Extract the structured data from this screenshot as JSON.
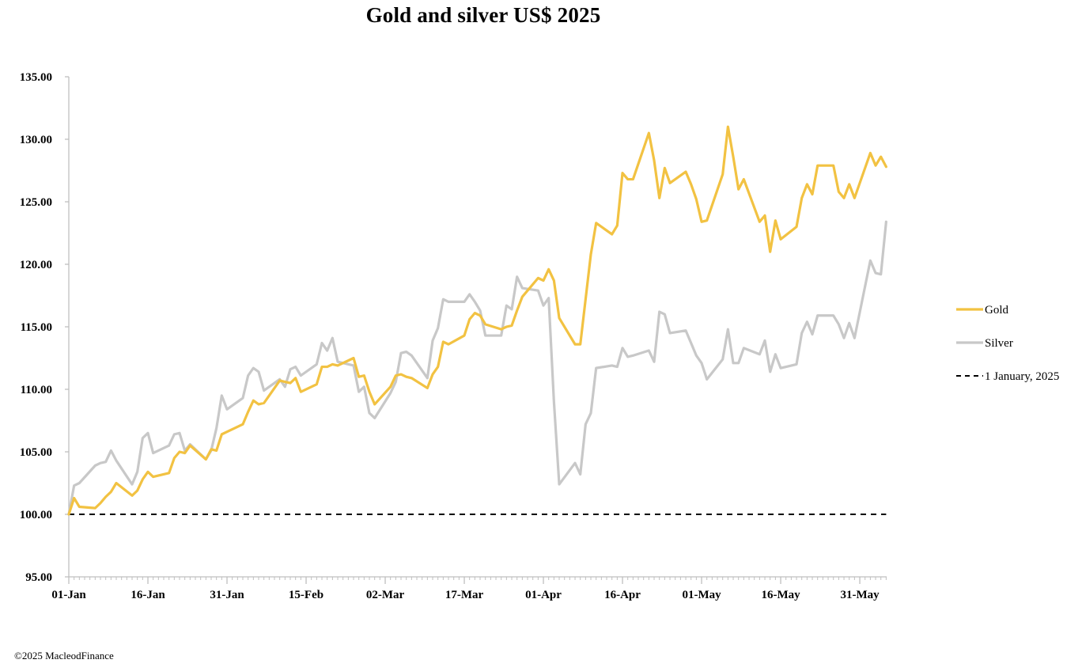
{
  "chart_data": {
    "type": "line",
    "title": "Gold and silver  US$ 2025",
    "xlabel": "",
    "ylabel": "",
    "ylim": [
      95,
      135
    ],
    "yticks": [
      "95.00",
      "100.00",
      "105.00",
      "110.00",
      "115.00",
      "120.00",
      "125.00",
      "130.00",
      "135.00"
    ],
    "xticks": [
      "01-Jan",
      "16-Jan",
      "31-Jan",
      "15-Feb",
      "02-Mar",
      "17-Mar",
      "01-Apr",
      "16-Apr",
      "01-May",
      "16-May",
      "31-May"
    ],
    "x_start_date": "2025-01-01",
    "legend_position": "right",
    "grid": false,
    "series": [
      {
        "name": "Gold",
        "color": "#f2c242",
        "style": "solid",
        "points": [
          [
            "2025-01-01",
            100.0
          ],
          [
            "2025-01-02",
            101.3
          ],
          [
            "2025-01-03",
            100.6
          ],
          [
            "2025-01-06",
            100.5
          ],
          [
            "2025-01-07",
            100.9
          ],
          [
            "2025-01-08",
            101.4
          ],
          [
            "2025-01-09",
            101.8
          ],
          [
            "2025-01-10",
            102.5
          ],
          [
            "2025-01-13",
            101.5
          ],
          [
            "2025-01-14",
            101.9
          ],
          [
            "2025-01-15",
            102.8
          ],
          [
            "2025-01-16",
            103.4
          ],
          [
            "2025-01-17",
            103.0
          ],
          [
            "2025-01-20",
            103.3
          ],
          [
            "2025-01-21",
            104.5
          ],
          [
            "2025-01-22",
            105.0
          ],
          [
            "2025-01-23",
            104.9
          ],
          [
            "2025-01-24",
            105.5
          ],
          [
            "2025-01-27",
            104.4
          ],
          [
            "2025-01-28",
            105.2
          ],
          [
            "2025-01-29",
            105.1
          ],
          [
            "2025-01-30",
            106.4
          ],
          [
            "2025-01-31",
            106.6
          ],
          [
            "2025-02-03",
            107.2
          ],
          [
            "2025-02-04",
            108.2
          ],
          [
            "2025-02-05",
            109.1
          ],
          [
            "2025-02-06",
            108.8
          ],
          [
            "2025-02-07",
            108.9
          ],
          [
            "2025-02-10",
            110.7
          ],
          [
            "2025-02-11",
            110.6
          ],
          [
            "2025-02-12",
            110.5
          ],
          [
            "2025-02-13",
            110.9
          ],
          [
            "2025-02-14",
            109.8
          ],
          [
            "2025-02-17",
            110.4
          ],
          [
            "2025-02-18",
            111.8
          ],
          [
            "2025-02-19",
            111.8
          ],
          [
            "2025-02-20",
            112.0
          ],
          [
            "2025-02-21",
            111.9
          ],
          [
            "2025-02-24",
            112.5
          ],
          [
            "2025-02-25",
            111.0
          ],
          [
            "2025-02-26",
            111.1
          ],
          [
            "2025-02-27",
            109.8
          ],
          [
            "2025-02-28",
            108.8
          ],
          [
            "2025-03-03",
            110.2
          ],
          [
            "2025-03-04",
            111.1
          ],
          [
            "2025-03-05",
            111.2
          ],
          [
            "2025-03-06",
            111.0
          ],
          [
            "2025-03-07",
            110.9
          ],
          [
            "2025-03-10",
            110.1
          ],
          [
            "2025-03-11",
            111.2
          ],
          [
            "2025-03-12",
            111.8
          ],
          [
            "2025-03-13",
            113.8
          ],
          [
            "2025-03-14",
            113.6
          ],
          [
            "2025-03-17",
            114.3
          ],
          [
            "2025-03-18",
            115.6
          ],
          [
            "2025-03-19",
            116.1
          ],
          [
            "2025-03-20",
            115.9
          ],
          [
            "2025-03-21",
            115.2
          ],
          [
            "2025-03-24",
            114.8
          ],
          [
            "2025-03-25",
            115.0
          ],
          [
            "2025-03-26",
            115.1
          ],
          [
            "2025-03-27",
            116.3
          ],
          [
            "2025-03-28",
            117.4
          ],
          [
            "2025-03-31",
            118.9
          ],
          [
            "2025-04-01",
            118.7
          ],
          [
            "2025-04-02",
            119.6
          ],
          [
            "2025-04-03",
            118.7
          ],
          [
            "2025-04-04",
            115.7
          ],
          [
            "2025-04-07",
            113.6
          ],
          [
            "2025-04-08",
            113.6
          ],
          [
            "2025-04-09",
            117.2
          ],
          [
            "2025-04-10",
            120.8
          ],
          [
            "2025-04-11",
            123.3
          ],
          [
            "2025-04-14",
            122.4
          ],
          [
            "2025-04-15",
            123.1
          ],
          [
            "2025-04-16",
            127.3
          ],
          [
            "2025-04-17",
            126.8
          ],
          [
            "2025-04-18",
            126.8
          ],
          [
            "2025-04-21",
            130.5
          ],
          [
            "2025-04-22",
            128.3
          ],
          [
            "2025-04-23",
            125.3
          ],
          [
            "2025-04-24",
            127.7
          ],
          [
            "2025-04-25",
            126.5
          ],
          [
            "2025-04-28",
            127.4
          ],
          [
            "2025-04-29",
            126.4
          ],
          [
            "2025-04-30",
            125.2
          ],
          [
            "2025-05-01",
            123.4
          ],
          [
            "2025-05-02",
            123.5
          ],
          [
            "2025-05-05",
            127.2
          ],
          [
            "2025-05-06",
            131.0
          ],
          [
            "2025-05-07",
            128.6
          ],
          [
            "2025-05-08",
            126.0
          ],
          [
            "2025-05-09",
            126.8
          ],
          [
            "2025-05-12",
            123.4
          ],
          [
            "2025-05-13",
            123.9
          ],
          [
            "2025-05-14",
            121.0
          ],
          [
            "2025-05-15",
            123.5
          ],
          [
            "2025-05-16",
            122.0
          ],
          [
            "2025-05-19",
            123.0
          ],
          [
            "2025-05-20",
            125.3
          ],
          [
            "2025-05-21",
            126.4
          ],
          [
            "2025-05-22",
            125.6
          ],
          [
            "2025-05-23",
            127.9
          ],
          [
            "2025-05-26",
            127.9
          ],
          [
            "2025-05-27",
            125.8
          ],
          [
            "2025-05-28",
            125.3
          ],
          [
            "2025-05-29",
            126.4
          ],
          [
            "2025-05-30",
            125.3
          ],
          [
            "2025-06-02",
            128.9
          ],
          [
            "2025-06-03",
            127.9
          ],
          [
            "2025-06-04",
            128.6
          ],
          [
            "2025-06-05",
            127.8
          ]
        ]
      },
      {
        "name": "Silver",
        "color": "#c8c8c8",
        "style": "solid",
        "points": [
          [
            "2025-01-01",
            100.0
          ],
          [
            "2025-01-02",
            102.3
          ],
          [
            "2025-01-03",
            102.5
          ],
          [
            "2025-01-06",
            103.9
          ],
          [
            "2025-01-07",
            104.1
          ],
          [
            "2025-01-08",
            104.2
          ],
          [
            "2025-01-09",
            105.1
          ],
          [
            "2025-01-10",
            104.3
          ],
          [
            "2025-01-13",
            102.4
          ],
          [
            "2025-01-14",
            103.4
          ],
          [
            "2025-01-15",
            106.1
          ],
          [
            "2025-01-16",
            106.5
          ],
          [
            "2025-01-17",
            104.9
          ],
          [
            "2025-01-20",
            105.5
          ],
          [
            "2025-01-21",
            106.4
          ],
          [
            "2025-01-22",
            106.5
          ],
          [
            "2025-01-23",
            105.1
          ],
          [
            "2025-01-24",
            105.6
          ],
          [
            "2025-01-27",
            104.4
          ],
          [
            "2025-01-28",
            105.1
          ],
          [
            "2025-01-29",
            106.9
          ],
          [
            "2025-01-30",
            109.5
          ],
          [
            "2025-01-31",
            108.4
          ],
          [
            "2025-02-03",
            109.3
          ],
          [
            "2025-02-04",
            111.1
          ],
          [
            "2025-02-05",
            111.7
          ],
          [
            "2025-02-06",
            111.4
          ],
          [
            "2025-02-07",
            109.9
          ],
          [
            "2025-02-10",
            110.8
          ],
          [
            "2025-02-11",
            110.2
          ],
          [
            "2025-02-12",
            111.6
          ],
          [
            "2025-02-13",
            111.8
          ],
          [
            "2025-02-14",
            111.1
          ],
          [
            "2025-02-17",
            112.0
          ],
          [
            "2025-02-18",
            113.7
          ],
          [
            "2025-02-19",
            113.1
          ],
          [
            "2025-02-20",
            114.1
          ],
          [
            "2025-02-21",
            112.2
          ],
          [
            "2025-02-24",
            111.9
          ],
          [
            "2025-02-25",
            109.8
          ],
          [
            "2025-02-26",
            110.2
          ],
          [
            "2025-02-27",
            108.1
          ],
          [
            "2025-02-28",
            107.7
          ],
          [
            "2025-03-03",
            109.7
          ],
          [
            "2025-03-04",
            110.6
          ],
          [
            "2025-03-05",
            112.9
          ],
          [
            "2025-03-06",
            113.0
          ],
          [
            "2025-03-07",
            112.7
          ],
          [
            "2025-03-10",
            110.9
          ],
          [
            "2025-03-11",
            113.9
          ],
          [
            "2025-03-12",
            114.9
          ],
          [
            "2025-03-13",
            117.2
          ],
          [
            "2025-03-14",
            117.0
          ],
          [
            "2025-03-17",
            117.0
          ],
          [
            "2025-03-18",
            117.6
          ],
          [
            "2025-03-19",
            117.0
          ],
          [
            "2025-03-20",
            116.3
          ],
          [
            "2025-03-21",
            114.3
          ],
          [
            "2025-03-24",
            114.3
          ],
          [
            "2025-03-25",
            116.7
          ],
          [
            "2025-03-26",
            116.4
          ],
          [
            "2025-03-27",
            119.0
          ],
          [
            "2025-03-28",
            118.1
          ],
          [
            "2025-03-31",
            117.9
          ],
          [
            "2025-04-01",
            116.7
          ],
          [
            "2025-04-02",
            117.3
          ],
          [
            "2025-04-03",
            109.0
          ],
          [
            "2025-04-04",
            102.4
          ],
          [
            "2025-04-07",
            104.1
          ],
          [
            "2025-04-08",
            103.2
          ],
          [
            "2025-04-09",
            107.2
          ],
          [
            "2025-04-10",
            108.1
          ],
          [
            "2025-04-11",
            111.7
          ],
          [
            "2025-04-14",
            111.9
          ],
          [
            "2025-04-15",
            111.8
          ],
          [
            "2025-04-16",
            113.3
          ],
          [
            "2025-04-17",
            112.6
          ],
          [
            "2025-04-18",
            112.7
          ],
          [
            "2025-04-21",
            113.1
          ],
          [
            "2025-04-22",
            112.2
          ],
          [
            "2025-04-23",
            116.2
          ],
          [
            "2025-04-24",
            116.0
          ],
          [
            "2025-04-25",
            114.5
          ],
          [
            "2025-04-28",
            114.7
          ],
          [
            "2025-04-29",
            113.7
          ],
          [
            "2025-04-30",
            112.7
          ],
          [
            "2025-05-01",
            112.1
          ],
          [
            "2025-05-02",
            110.8
          ],
          [
            "2025-05-05",
            112.4
          ],
          [
            "2025-05-06",
            114.8
          ],
          [
            "2025-05-07",
            112.1
          ],
          [
            "2025-05-08",
            112.1
          ],
          [
            "2025-05-09",
            113.3
          ],
          [
            "2025-05-12",
            112.8
          ],
          [
            "2025-05-13",
            113.9
          ],
          [
            "2025-05-14",
            111.4
          ],
          [
            "2025-05-15",
            112.8
          ],
          [
            "2025-05-16",
            111.7
          ],
          [
            "2025-05-19",
            112.0
          ],
          [
            "2025-05-20",
            114.5
          ],
          [
            "2025-05-21",
            115.4
          ],
          [
            "2025-05-22",
            114.4
          ],
          [
            "2025-05-23",
            115.9
          ],
          [
            "2025-05-26",
            115.9
          ],
          [
            "2025-05-27",
            115.2
          ],
          [
            "2025-05-28",
            114.1
          ],
          [
            "2025-05-29",
            115.3
          ],
          [
            "2025-05-30",
            114.1
          ],
          [
            "2025-06-02",
            120.3
          ],
          [
            "2025-06-03",
            119.3
          ],
          [
            "2025-06-04",
            119.2
          ],
          [
            "2025-06-05",
            123.4
          ]
        ]
      },
      {
        "name": "1 January, 2025",
        "color": "#000000",
        "style": "dashed",
        "points": [
          [
            "2025-01-01",
            100.0
          ],
          [
            "2025-06-05",
            100.0
          ]
        ]
      }
    ]
  },
  "footer": {
    "copyright": "©2025 MacleodFinance"
  }
}
